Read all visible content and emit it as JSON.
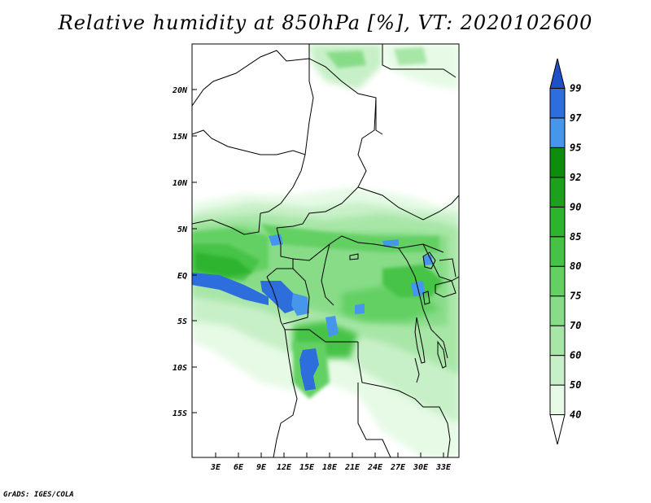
{
  "title": "Relative humidity at 850hPa [%], VT: 2020102600",
  "credit": "GrADS: IGES/COLA",
  "map": {
    "lon_ticks": [
      "3E",
      "6E",
      "9E",
      "12E",
      "15E",
      "18E",
      "21E",
      "24E",
      "27E",
      "30E",
      "33E"
    ],
    "lat_ticks": [
      "20N",
      "15N",
      "10N",
      "5N",
      "EQ",
      "5S",
      "10S",
      "15S"
    ]
  },
  "colorbar": {
    "levels": [
      "40",
      "50",
      "60",
      "70",
      "75",
      "80",
      "85",
      "90",
      "92",
      "95",
      "97",
      "99"
    ],
    "colors": [
      "#ffffff",
      "#e6fae6",
      "#c8f0c8",
      "#a8e6a8",
      "#88dc88",
      "#64d064",
      "#46c346",
      "#2db42d",
      "#1ea01e",
      "#0e8c0e",
      "#4696ec",
      "#2e6edc",
      "#1e50c8"
    ]
  }
}
